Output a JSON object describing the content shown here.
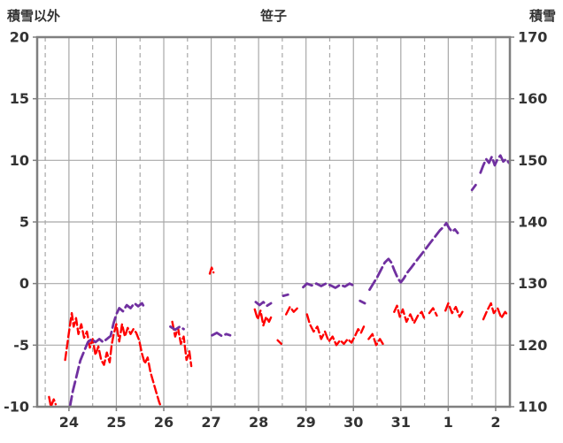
{
  "header": {
    "left_label": "積雪以外",
    "title": "笹子",
    "right_label": "積雪"
  },
  "chart_data": {
    "type": "line",
    "title": "笹子",
    "left_axis": {
      "label": "積雪以外",
      "min": -10,
      "max": 20,
      "ticks": [
        20,
        15,
        10,
        5,
        0,
        -5,
        -10
      ]
    },
    "right_axis": {
      "label": "積雪",
      "min": 110,
      "max": 170,
      "ticks": [
        170,
        160,
        150,
        140,
        130,
        120,
        110
      ]
    },
    "x_axis": {
      "min": 23.33,
      "max": 33.3,
      "ticks": [
        {
          "pos": 24,
          "label": "24"
        },
        {
          "pos": 25,
          "label": "25"
        },
        {
          "pos": 26,
          "label": "26"
        },
        {
          "pos": 27,
          "label": "27"
        },
        {
          "pos": 28,
          "label": "28"
        },
        {
          "pos": 29,
          "label": "29"
        },
        {
          "pos": 30,
          "label": "30"
        },
        {
          "pos": 31,
          "label": "31"
        },
        {
          "pos": 32,
          "label": "1"
        },
        {
          "pos": 33,
          "label": "2"
        }
      ],
      "half_day_lines": [
        23.5,
        24.5,
        25.5,
        26.5,
        27.5,
        28.5,
        29.5,
        30.5,
        31.5,
        32.5
      ]
    },
    "grid": {
      "color": "#a8a8a8",
      "border_color": "#7f7f7f"
    },
    "text_color": "#333333",
    "series": [
      {
        "name": "積雪以外",
        "axis": "left",
        "color": "#ff0000",
        "width": 2.4,
        "dash": "9 4",
        "segments": [
          [
            [
              23.58,
              -9.2
            ],
            [
              23.62,
              -10.0
            ],
            [
              23.68,
              -9.4
            ],
            [
              23.72,
              -9.8
            ]
          ],
          [
            [
              23.92,
              -6.2
            ],
            [
              23.97,
              -4.8
            ],
            [
              24.02,
              -3.4
            ],
            [
              24.06,
              -2.4
            ],
            [
              24.1,
              -3.5
            ],
            [
              24.15,
              -2.8
            ],
            [
              24.2,
              -4.1
            ],
            [
              24.26,
              -3.3
            ],
            [
              24.32,
              -4.4
            ],
            [
              24.38,
              -3.9
            ],
            [
              24.44,
              -5.2
            ],
            [
              24.5,
              -4.5
            ],
            [
              24.56,
              -5.8
            ],
            [
              24.62,
              -5.1
            ],
            [
              24.68,
              -6.2
            ],
            [
              24.74,
              -6.6
            ],
            [
              24.8,
              -5.6
            ],
            [
              24.86,
              -6.4
            ],
            [
              24.9,
              -5.0
            ],
            [
              24.94,
              -4.2
            ],
            [
              25.0,
              -3.3
            ],
            [
              25.06,
              -4.7
            ],
            [
              25.12,
              -3.3
            ],
            [
              25.18,
              -4.3
            ],
            [
              25.24,
              -3.6
            ],
            [
              25.3,
              -4.1
            ],
            [
              25.36,
              -3.7
            ],
            [
              25.42,
              -4.0
            ],
            [
              25.48,
              -4.6
            ],
            [
              25.54,
              -5.7
            ],
            [
              25.6,
              -6.5
            ],
            [
              25.66,
              -6.0
            ],
            [
              25.72,
              -7.2
            ],
            [
              25.78,
              -8.0
            ],
            [
              25.84,
              -8.8
            ],
            [
              25.9,
              -9.6
            ],
            [
              25.94,
              -10.0
            ]
          ],
          [
            [
              26.18,
              -3.1
            ],
            [
              26.24,
              -4.3
            ],
            [
              26.3,
              -3.6
            ],
            [
              26.36,
              -4.9
            ],
            [
              26.42,
              -4.3
            ],
            [
              26.48,
              -6.2
            ],
            [
              26.54,
              -5.5
            ],
            [
              26.58,
              -6.7
            ]
          ],
          [
            [
              26.97,
              0.8
            ],
            [
              27.01,
              1.3
            ],
            [
              27.05,
              0.9
            ]
          ],
          [
            [
              27.92,
              -2.1
            ],
            [
              27.98,
              -2.9
            ],
            [
              28.04,
              -2.2
            ],
            [
              28.1,
              -3.4
            ],
            [
              28.16,
              -2.7
            ],
            [
              28.22,
              -3.1
            ],
            [
              28.28,
              -2.6
            ]
          ],
          [
            [
              28.4,
              -4.6
            ],
            [
              28.48,
              -4.9
            ]
          ],
          [
            [
              28.58,
              -2.5
            ],
            [
              28.66,
              -1.9
            ],
            [
              28.74,
              -2.3
            ],
            [
              28.82,
              -2.0
            ]
          ],
          [
            [
              29.02,
              -2.5
            ],
            [
              29.08,
              -3.3
            ],
            [
              29.16,
              -3.9
            ],
            [
              29.24,
              -3.5
            ],
            [
              29.32,
              -4.5
            ],
            [
              29.4,
              -3.9
            ],
            [
              29.48,
              -4.7
            ],
            [
              29.56,
              -4.3
            ],
            [
              29.64,
              -5.0
            ],
            [
              29.72,
              -4.6
            ],
            [
              29.8,
              -4.9
            ],
            [
              29.88,
              -4.5
            ],
            [
              29.96,
              -4.8
            ],
            [
              30.04,
              -4.2
            ],
            [
              30.1,
              -3.7
            ],
            [
              30.16,
              -4.0
            ],
            [
              30.22,
              -3.5
            ]
          ],
          [
            [
              30.32,
              -4.5
            ],
            [
              30.4,
              -4.1
            ],
            [
              30.48,
              -5.0
            ],
            [
              30.56,
              -4.5
            ],
            [
              30.62,
              -4.9
            ]
          ],
          [
            [
              30.86,
              -2.3
            ],
            [
              30.92,
              -1.8
            ],
            [
              30.98,
              -2.7
            ],
            [
              31.04,
              -2.1
            ],
            [
              31.12,
              -3.1
            ],
            [
              31.2,
              -2.5
            ],
            [
              31.28,
              -3.2
            ],
            [
              31.36,
              -2.6
            ],
            [
              31.44,
              -2.3
            ],
            [
              31.5,
              -2.9
            ]
          ],
          [
            [
              31.6,
              -2.4
            ],
            [
              31.68,
              -2.0
            ],
            [
              31.76,
              -2.6
            ]
          ],
          [
            [
              31.94,
              -2.2
            ],
            [
              32.0,
              -1.6
            ],
            [
              32.08,
              -2.4
            ],
            [
              32.16,
              -1.9
            ],
            [
              32.24,
              -2.7
            ],
            [
              32.3,
              -2.3
            ]
          ],
          [
            [
              32.74,
              -2.9
            ],
            [
              32.82,
              -2.2
            ],
            [
              32.9,
              -1.6
            ],
            [
              32.96,
              -2.4
            ],
            [
              33.04,
              -2.0
            ],
            [
              33.12,
              -2.8
            ],
            [
              33.2,
              -2.3
            ],
            [
              33.26,
              -2.6
            ]
          ]
        ]
      },
      {
        "name": "積雪",
        "axis": "right",
        "color": "#7030a0",
        "width": 2.8,
        "dash": "12 5",
        "segments": [
          [
            [
              24.02,
              110.0
            ],
            [
              24.08,
              112.5
            ],
            [
              24.16,
              115.0
            ],
            [
              24.24,
              117.5
            ],
            [
              24.32,
              119.0
            ],
            [
              24.4,
              120.5
            ],
            [
              24.48,
              121.0
            ],
            [
              24.56,
              120.5
            ],
            [
              24.64,
              121.0
            ],
            [
              24.72,
              120.5
            ],
            [
              24.8,
              121.0
            ],
            [
              24.88,
              121.5
            ],
            [
              24.94,
              123.5
            ],
            [
              25.0,
              125.0
            ],
            [
              25.06,
              126.0
            ],
            [
              25.14,
              125.5
            ],
            [
              25.22,
              126.5
            ],
            [
              25.3,
              126.0
            ],
            [
              25.38,
              126.8
            ],
            [
              25.46,
              126.3
            ],
            [
              25.54,
              126.8
            ],
            [
              25.6,
              126.0
            ]
          ],
          [
            [
              26.14,
              123.0
            ],
            [
              26.24,
              122.5
            ],
            [
              26.34,
              123.0
            ],
            [
              26.42,
              122.6
            ]
          ],
          [
            [
              27.02,
              121.6
            ],
            [
              27.12,
              122.0
            ],
            [
              27.22,
              121.5
            ],
            [
              27.32,
              121.8
            ],
            [
              27.4,
              121.6
            ]
          ],
          [
            [
              27.94,
              127.0
            ],
            [
              28.02,
              126.5
            ],
            [
              28.1,
              127.0
            ],
            [
              28.18,
              126.4
            ],
            [
              28.26,
              126.8
            ]
          ],
          [
            [
              28.52,
              128.0
            ],
            [
              28.62,
              128.2
            ]
          ],
          [
            [
              28.94,
              129.4
            ],
            [
              29.02,
              130.0
            ],
            [
              29.12,
              129.7
            ],
            [
              29.22,
              130.0
            ],
            [
              29.32,
              129.6
            ],
            [
              29.42,
              130.0
            ],
            [
              29.52,
              129.7
            ],
            [
              29.62,
              129.3
            ],
            [
              29.72,
              129.8
            ],
            [
              29.82,
              129.5
            ],
            [
              29.92,
              130.0
            ],
            [
              30.02,
              129.6
            ]
          ],
          [
            [
              30.14,
              127.2
            ],
            [
              30.24,
              126.8
            ]
          ],
          [
            [
              30.34,
              129.0
            ],
            [
              30.42,
              130.0
            ],
            [
              30.5,
              131.0
            ],
            [
              30.58,
              132.2
            ],
            [
              30.66,
              133.4
            ],
            [
              30.74,
              134.0
            ],
            [
              30.8,
              133.4
            ],
            [
              30.86,
              132.2
            ],
            [
              30.94,
              130.8
            ],
            [
              31.0,
              130.2
            ],
            [
              31.06,
              130.8
            ],
            [
              31.14,
              131.8
            ],
            [
              31.22,
              132.6
            ],
            [
              31.32,
              133.6
            ],
            [
              31.42,
              134.6
            ],
            [
              31.52,
              135.6
            ],
            [
              31.62,
              136.6
            ],
            [
              31.72,
              137.6
            ],
            [
              31.82,
              138.6
            ],
            [
              31.9,
              139.2
            ],
            [
              31.96,
              139.8
            ],
            [
              32.02,
              139.0
            ],
            [
              32.08,
              138.4
            ],
            [
              32.14,
              138.8
            ],
            [
              32.2,
              138.2
            ]
          ],
          [
            [
              32.5,
              145.2
            ],
            [
              32.58,
              146.0
            ]
          ],
          [
            [
              32.68,
              148.0
            ],
            [
              32.74,
              149.2
            ],
            [
              32.8,
              150.2
            ],
            [
              32.86,
              149.6
            ],
            [
              32.92,
              150.6
            ],
            [
              32.98,
              149.2
            ],
            [
              33.04,
              150.2
            ],
            [
              33.1,
              150.8
            ],
            [
              33.16,
              149.8
            ],
            [
              33.22,
              150.2
            ],
            [
              33.28,
              149.6
            ]
          ]
        ]
      }
    ]
  }
}
